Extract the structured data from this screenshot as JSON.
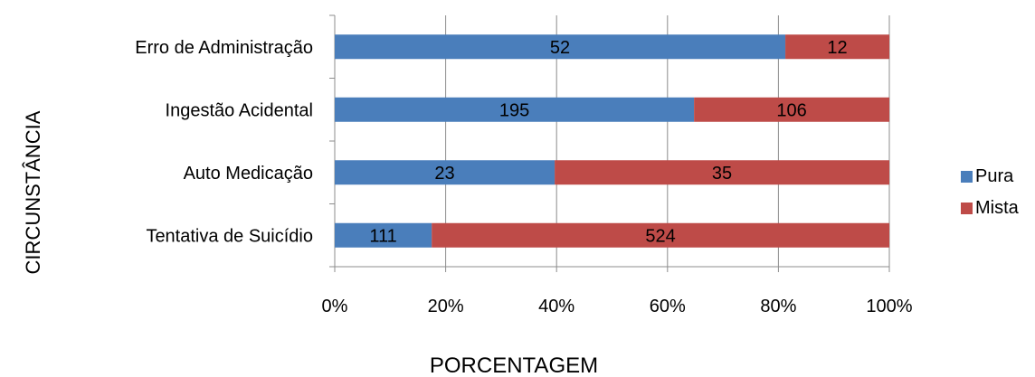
{
  "chart_data": {
    "type": "bar",
    "orientation": "horizontal",
    "stacked": "percent",
    "categories": [
      "Erro de Administração",
      "Ingestão Acidental",
      "Auto Medicação",
      "Tentativa de Suicídio"
    ],
    "series": [
      {
        "name": "Pura",
        "values": [
          52,
          195,
          23,
          111
        ],
        "color": "#4a7ebb"
      },
      {
        "name": "Mista",
        "values": [
          12,
          106,
          35,
          524
        ],
        "color": "#be4b48"
      }
    ],
    "xlabel": "PORCENTAGEM",
    "ylabel": "CIRCUNSTÂNCIA",
    "xticks": [
      "0%",
      "20%",
      "40%",
      "60%",
      "80%",
      "100%"
    ],
    "xlim": [
      0,
      100
    ],
    "grid": true,
    "legend_position": "right"
  }
}
